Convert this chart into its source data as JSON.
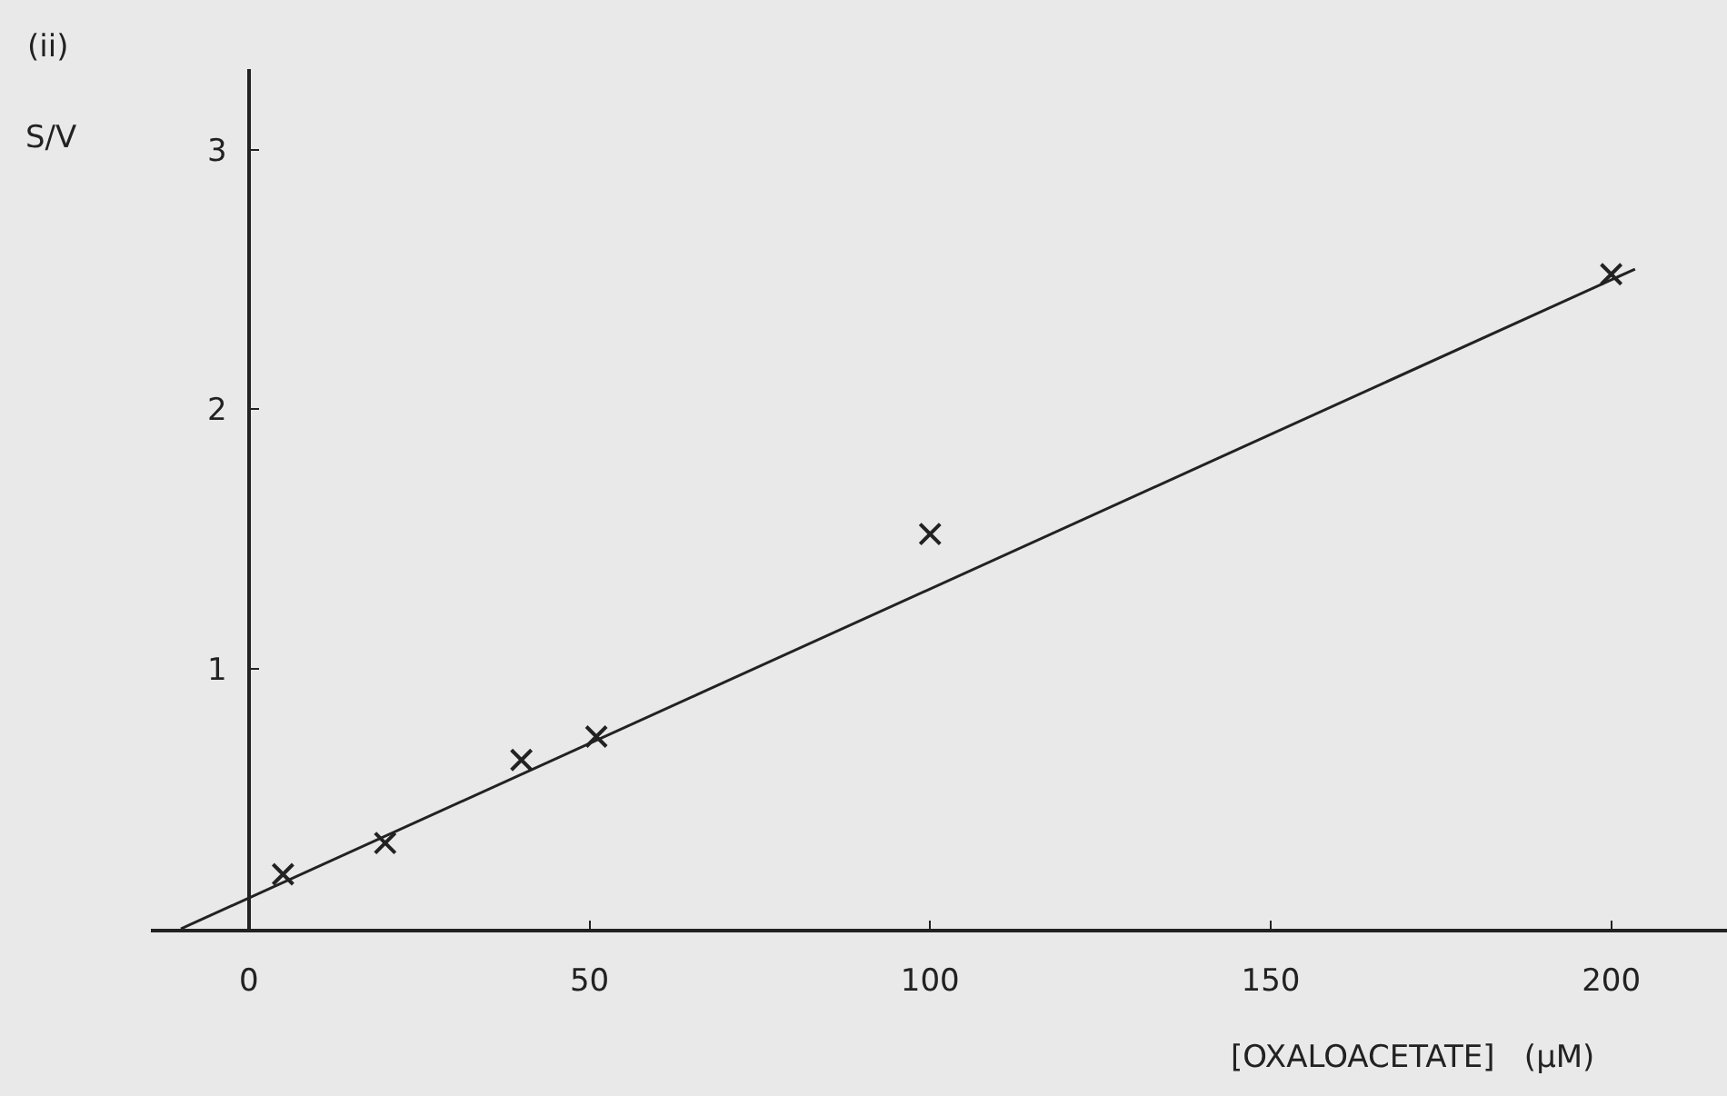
{
  "chart_data": {
    "type": "scatter",
    "title": "(ii)",
    "xlabel": "[OXALOACETATE]   (μM)",
    "ylabel": "S/V",
    "x": [
      5,
      20,
      40,
      51,
      100,
      200
    ],
    "series": [
      {
        "marker": "cross",
        "color": "#222222",
        "values": [
          0.21,
          0.33,
          0.65,
          0.74,
          1.52,
          2.52
        ]
      },
      {
        "type": "line",
        "color": "#222222",
        "x": [
          -10,
          203.5
        ],
        "values": [
          0,
          2.54
        ]
      }
    ],
    "xlim": [
      -14.4,
      217
    ],
    "ylim": [
      0,
      3.31
    ],
    "xticks": [
      0,
      50,
      100,
      150,
      200
    ],
    "yticks": [
      1,
      2,
      3
    ],
    "grid": false,
    "legend": false
  }
}
